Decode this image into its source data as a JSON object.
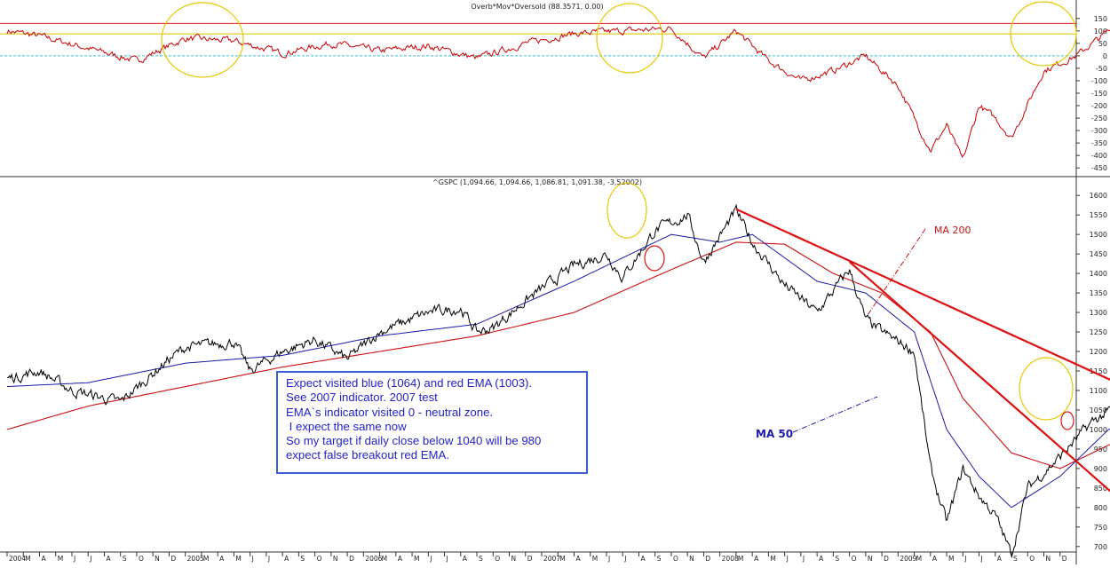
{
  "top_panel": {
    "title": "Overb*Mov*Oversold (88.3571, 0.00)",
    "y_ticks": [
      "150",
      "100",
      "50",
      "0",
      "-50",
      "-100",
      "-150",
      "-200",
      "-250",
      "-300",
      "-350",
      "-400",
      "-450"
    ]
  },
  "bottom_panel": {
    "title": "^GSPC (1,094.66, 1,094.66, 1,086.81, 1,091.38, -3,52002)",
    "y_ticks": [
      "1600",
      "1550",
      "1500",
      "1450",
      "1400",
      "1350",
      "1300",
      "1250",
      "1200",
      "1150",
      "1100",
      "1050",
      "1000",
      "950",
      "900",
      "850",
      "800",
      "750",
      "700"
    ],
    "label_ma200": "MA 200",
    "label_ma50": "MA 50"
  },
  "x_axis": {
    "months": [
      "2004",
      "M",
      "A",
      "M",
      "J",
      "J",
      "A",
      "S",
      "O",
      "N",
      "D",
      "2005",
      "M",
      "A",
      "M",
      "J",
      "J",
      "A",
      "S",
      "O",
      "N",
      "D",
      "2006",
      "M",
      "A",
      "M",
      "J",
      "J",
      "A",
      "S",
      "O",
      "N",
      "D",
      "2007",
      "M",
      "A",
      "M",
      "J",
      "J",
      "A",
      "S",
      "O",
      "N",
      "D",
      "2008",
      "M",
      "A",
      "M",
      "J",
      "J",
      "A",
      "S",
      "O",
      "N",
      "D",
      "2009",
      "M",
      "A",
      "M",
      "J",
      "J",
      "A",
      "S",
      "O",
      "N",
      "D"
    ]
  },
  "note": {
    "lines": [
      "Expect visited blue (1064) and red EMA (1003).",
      "See 2007 indicator. 2007 test",
      "EMA`s indicator visited 0 - neutral zone.",
      " I expect the same now",
      "So my target if daily close below 1040 will be 980",
      "expect false breakout red EMA."
    ]
  },
  "colors": {
    "price": "#000000",
    "ma50": "#1a1aaa",
    "ma200": "#cc1111",
    "trendline": "#dd1111",
    "oscillator": "#cc0000",
    "overbought_line": "#e8c800",
    "zero_line": "#30c0d0",
    "circle_yellow": "#e8c800",
    "circle_red": "#dd1111",
    "note_border": "#3d5fd6",
    "note_text": "#2222cc"
  },
  "chart_data": [
    {
      "type": "line",
      "title": "Overb*Mov*Oversold (88.3571, 0.00)",
      "ylim": [
        -460,
        160
      ],
      "reference_lines": [
        130,
        88,
        0
      ],
      "series": [
        {
          "name": "",
          "x": [
            "2004-01",
            "2004-03",
            "2004-06",
            "2004-09",
            "2004-12",
            "2005-03",
            "2005-06",
            "2005-09",
            "2005-12",
            "2006-03",
            "2006-06",
            "2006-09",
            "2006-12",
            "2007-03",
            "2007-06",
            "2007-08",
            "2007-10",
            "2007-12",
            "2008-02",
            "2008-04",
            "2008-06",
            "2008-08",
            "2008-10",
            "2008-11",
            "2008-12",
            "2009-01",
            "2009-02",
            "2009-03",
            "2009-05",
            "2009-07",
            "2009-09",
            "2009-11",
            "2009-12"
          ],
          "y": [
            100,
            80,
            30,
            -20,
            70,
            60,
            10,
            50,
            20,
            40,
            -10,
            50,
            90,
            100,
            110,
            -10,
            100,
            -20,
            -100,
            -60,
            0,
            -120,
            -380,
            -280,
            -420,
            -200,
            -250,
            -330,
            -60,
            0,
            100,
            110,
            90
          ]
        }
      ]
    },
    {
      "type": "line",
      "title": "^GSPC (1,094.66, 1,094.66, 1,086.81, 1,091.38, -3,52002)",
      "ylim": [
        695,
        1605
      ],
      "series": [
        {
          "name": "",
          "x": [
            "2004-01",
            "2004-03",
            "2004-05",
            "2004-08",
            "2004-11",
            "2004-12",
            "2005-03",
            "2005-04",
            "2005-06",
            "2005-08",
            "2005-10",
            "2005-12",
            "2006-03",
            "2006-05",
            "2006-06",
            "2006-07",
            "2006-09",
            "2006-12",
            "2007-02",
            "2007-03",
            "2007-05",
            "2007-07",
            "2007-08",
            "2007-10",
            "2007-11",
            "2008-01",
            "2008-03",
            "2008-05",
            "2008-06",
            "2008-07",
            "2008-09",
            "2008-10",
            "2008-11",
            "2008-12",
            "2009-01",
            "2009-02",
            "2009-03",
            "2009-04",
            "2009-06",
            "2009-08",
            "2009-10",
            "2009-11",
            "2009-12"
          ],
          "y": [
            1130,
            1150,
            1100,
            1070,
            1180,
            1210,
            1225,
            1150,
            1200,
            1230,
            1180,
            1250,
            1300,
            1310,
            1250,
            1260,
            1330,
            1420,
            1450,
            1390,
            1510,
            1550,
            1430,
            1560,
            1480,
            1370,
            1300,
            1410,
            1280,
            1250,
            1200,
            900,
            760,
            900,
            830,
            780,
            680,
            850,
            930,
            1020,
            1070,
            1100,
            1090
          ]
        },
        {
          "name": "MA 50",
          "x": [
            "2004-01",
            "2004-06",
            "2004-12",
            "2005-06",
            "2005-12",
            "2006-06",
            "2006-12",
            "2007-06",
            "2007-09",
            "2007-11",
            "2008-03",
            "2008-06",
            "2008-09",
            "2008-11",
            "2009-01",
            "2009-03",
            "2009-06",
            "2009-09",
            "2009-12"
          ],
          "y": [
            1110,
            1120,
            1170,
            1190,
            1240,
            1270,
            1380,
            1500,
            1480,
            1500,
            1380,
            1350,
            1250,
            1000,
            880,
            800,
            880,
            1000,
            1064
          ]
        },
        {
          "name": "MA 200",
          "x": [
            "2004-01",
            "2004-06",
            "2004-12",
            "2005-06",
            "2005-12",
            "2006-06",
            "2006-12",
            "2007-06",
            "2007-10",
            "2008-01",
            "2008-04",
            "2008-07",
            "2008-10",
            "2008-12",
            "2009-03",
            "2009-06",
            "2009-09",
            "2009-12"
          ],
          "y": [
            1000,
            1060,
            1110,
            1160,
            1200,
            1240,
            1300,
            1410,
            1480,
            1475,
            1400,
            1350,
            1250,
            1080,
            940,
            900,
            960,
            1003
          ]
        }
      ]
    }
  ]
}
